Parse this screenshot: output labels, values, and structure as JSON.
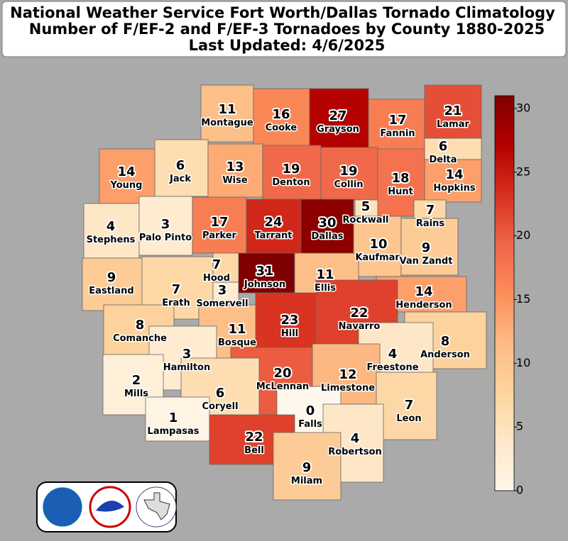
{
  "chart_data": {
    "type": "choropleth",
    "title": "National Weather Service Fort Worth/Dallas Tornado Climatology",
    "subtitle": "Number of F/EF-2 and F/EF-3 Tornadoes by County 1880-2025",
    "note": "Last Updated: 4/6/2025",
    "regions": [
      {
        "name": "Montague",
        "value": 11
      },
      {
        "name": "Cooke",
        "value": 16
      },
      {
        "name": "Grayson",
        "value": 27
      },
      {
        "name": "Fannin",
        "value": 17
      },
      {
        "name": "Lamar",
        "value": 21
      },
      {
        "name": "Delta",
        "value": 6
      },
      {
        "name": "Hopkins",
        "value": 14
      },
      {
        "name": "Young",
        "value": 14
      },
      {
        "name": "Jack",
        "value": 6
      },
      {
        "name": "Wise",
        "value": 13
      },
      {
        "name": "Denton",
        "value": 19
      },
      {
        "name": "Collin",
        "value": 19
      },
      {
        "name": "Hunt",
        "value": 18
      },
      {
        "name": "Rockwall",
        "value": 5
      },
      {
        "name": "Rains",
        "value": 7
      },
      {
        "name": "Stephens",
        "value": 4
      },
      {
        "name": "Palo Pinto",
        "value": 3
      },
      {
        "name": "Parker",
        "value": 17
      },
      {
        "name": "Tarrant",
        "value": 24
      },
      {
        "name": "Dallas",
        "value": 30
      },
      {
        "name": "Kaufman",
        "value": 10
      },
      {
        "name": "Van Zandt",
        "value": 9
      },
      {
        "name": "Eastland",
        "value": 9
      },
      {
        "name": "Erath",
        "value": 7
      },
      {
        "name": "Hood",
        "value": 7
      },
      {
        "name": "Somervell",
        "value": 3
      },
      {
        "name": "Johnson",
        "value": 31
      },
      {
        "name": "Ellis",
        "value": 11
      },
      {
        "name": "Henderson",
        "value": 14
      },
      {
        "name": "Comanche",
        "value": 8
      },
      {
        "name": "Bosque",
        "value": 11
      },
      {
        "name": "Hill",
        "value": 23
      },
      {
        "name": "Navarro",
        "value": 22
      },
      {
        "name": "Anderson",
        "value": 8
      },
      {
        "name": "Hamilton",
        "value": 3
      },
      {
        "name": "Freestone",
        "value": 4
      },
      {
        "name": "Mills",
        "value": 2
      },
      {
        "name": "Limestone",
        "value": 12
      },
      {
        "name": "McLennan",
        "value": 20
      },
      {
        "name": "Coryell",
        "value": 6
      },
      {
        "name": "Lampasas",
        "value": 1
      },
      {
        "name": "Falls",
        "value": 0
      },
      {
        "name": "Leon",
        "value": 7
      },
      {
        "name": "Bell",
        "value": 22
      },
      {
        "name": "Robertson",
        "value": 4
      },
      {
        "name": "Milam",
        "value": 9
      }
    ],
    "clim": [
      0,
      31
    ],
    "cticks": [
      0,
      5,
      10,
      15,
      20,
      25,
      30
    ],
    "colormap": [
      "#fff7ec",
      "#fee8c8",
      "#fdd49e",
      "#fdbb84",
      "#fc8d59",
      "#ef6548",
      "#d7301f",
      "#b30000",
      "#7f0000"
    ]
  }
}
